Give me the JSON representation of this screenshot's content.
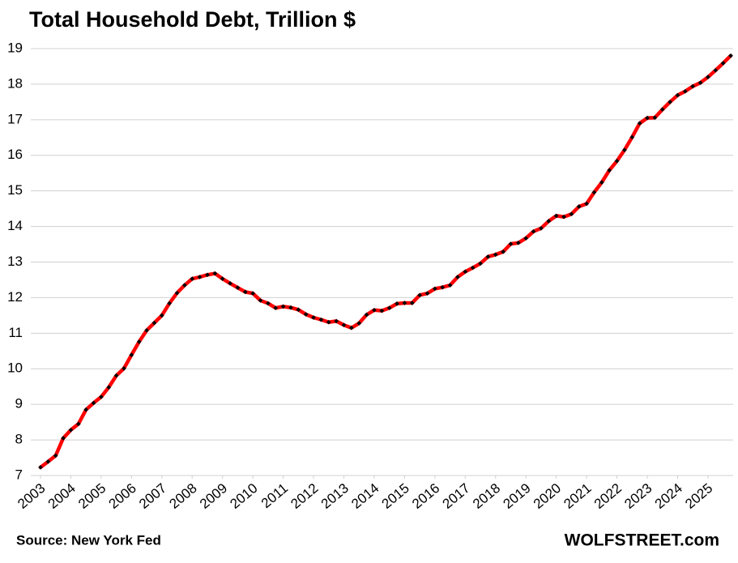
{
  "chart_data": {
    "type": "line",
    "title": "Total Household Debt, Trillion $",
    "source": "Source: New York Fed",
    "watermark": "WOLFSTREET.com",
    "x": [
      2003,
      2003.25,
      2003.5,
      2003.75,
      2004,
      2004.25,
      2004.5,
      2004.75,
      2005,
      2005.25,
      2005.5,
      2005.75,
      2006,
      2006.25,
      2006.5,
      2006.75,
      2007,
      2007.25,
      2007.5,
      2007.75,
      2008,
      2008.25,
      2008.5,
      2008.75,
      2009,
      2009.25,
      2009.5,
      2009.75,
      2010,
      2010.25,
      2010.5,
      2010.75,
      2011,
      2011.25,
      2011.5,
      2011.75,
      2012,
      2012.25,
      2012.5,
      2012.75,
      2013,
      2013.25,
      2013.5,
      2013.75,
      2014,
      2014.25,
      2014.5,
      2014.75,
      2015,
      2015.25,
      2015.5,
      2015.75,
      2016,
      2016.25,
      2016.5,
      2016.75,
      2017,
      2017.25,
      2017.5,
      2017.75,
      2018,
      2018.25,
      2018.5,
      2018.75,
      2019,
      2019.25,
      2019.5,
      2019.75,
      2020,
      2020.25,
      2020.5,
      2020.75,
      2021,
      2021.25,
      2021.5,
      2021.75,
      2022,
      2022.25,
      2022.5,
      2022.75,
      2023,
      2023.25,
      2023.5,
      2023.75,
      2024,
      2024.25,
      2024.5,
      2024.75,
      2025,
      2025.25,
      2025.5,
      2025.75
    ],
    "series": [
      {
        "name": "Total Household Debt",
        "color": "#ff0000",
        "marker_color": "#000000",
        "values": [
          7.23,
          7.39,
          7.56,
          8.05,
          8.28,
          8.45,
          8.85,
          9.04,
          9.21,
          9.48,
          9.81,
          10.01,
          10.39,
          10.76,
          11.08,
          11.29,
          11.5,
          11.84,
          12.13,
          12.35,
          12.53,
          12.58,
          12.64,
          12.68,
          12.53,
          12.4,
          12.28,
          12.16,
          12.12,
          11.92,
          11.84,
          11.71,
          11.75,
          11.72,
          11.66,
          11.53,
          11.44,
          11.38,
          11.31,
          11.34,
          11.23,
          11.15,
          11.28,
          11.52,
          11.65,
          11.63,
          11.71,
          11.83,
          11.85,
          11.85,
          12.07,
          12.12,
          12.25,
          12.29,
          12.35,
          12.58,
          12.73,
          12.84,
          12.96,
          13.15,
          13.21,
          13.29,
          13.51,
          13.54,
          13.67,
          13.86,
          13.95,
          14.15,
          14.3,
          14.27,
          14.35,
          14.56,
          14.64,
          14.96,
          15.24,
          15.58,
          15.84,
          16.15,
          16.51,
          16.9,
          17.05,
          17.06,
          17.29,
          17.5,
          17.69,
          17.8,
          17.94,
          18.04,
          18.2,
          18.39,
          18.59,
          18.8
        ]
      }
    ],
    "xlim": [
      2002.68,
      2025.83
    ],
    "xticks": [
      2003,
      2004,
      2005,
      2006,
      2007,
      2008,
      2009,
      2010,
      2011,
      2012,
      2013,
      2014,
      2015,
      2016,
      2017,
      2018,
      2019,
      2020,
      2021,
      2022,
      2023,
      2024,
      2025
    ],
    "ylim": [
      7,
      19
    ],
    "yticks": [
      7,
      8,
      9,
      10,
      11,
      12,
      13,
      14,
      15,
      16,
      17,
      18,
      19
    ],
    "grid": true
  }
}
